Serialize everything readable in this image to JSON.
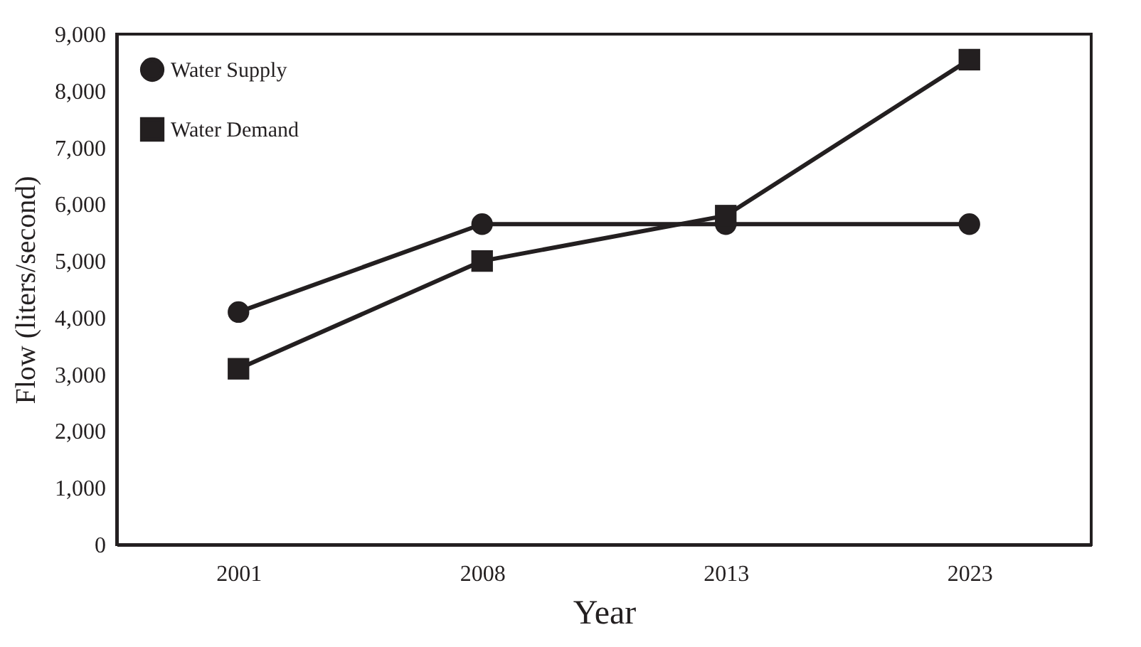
{
  "chart_data": {
    "type": "line",
    "xlabel": "Year",
    "ylabel": "Flow (liters/second)",
    "categories": [
      "2001",
      "2008",
      "2013",
      "2023"
    ],
    "series": [
      {
        "name": "Water Supply",
        "color": "#231f20",
        "marker": "circle",
        "values": [
          4100,
          5650,
          5650,
          5650
        ]
      },
      {
        "name": "Water Demand",
        "color": "#231f20",
        "marker": "square",
        "values": [
          3100,
          5000,
          5800,
          8550
        ]
      }
    ],
    "ylim": [
      0,
      9000
    ],
    "yticks": [
      0,
      {
        "value": 1000,
        "label": "1,000"
      },
      {
        "value": 2000,
        "label": "2,000"
      },
      {
        "value": 3000,
        "label": "3,000"
      },
      {
        "value": 4000,
        "label": "4,000"
      },
      {
        "value": 5000,
        "label": "5,000"
      },
      {
        "value": 6000,
        "label": "6,000"
      },
      {
        "value": 7000,
        "label": "7,000"
      },
      {
        "value": 8000,
        "label": "8,000"
      },
      {
        "value": 9000,
        "label": "9,000"
      }
    ],
    "grid": false,
    "legend": "top left"
  }
}
